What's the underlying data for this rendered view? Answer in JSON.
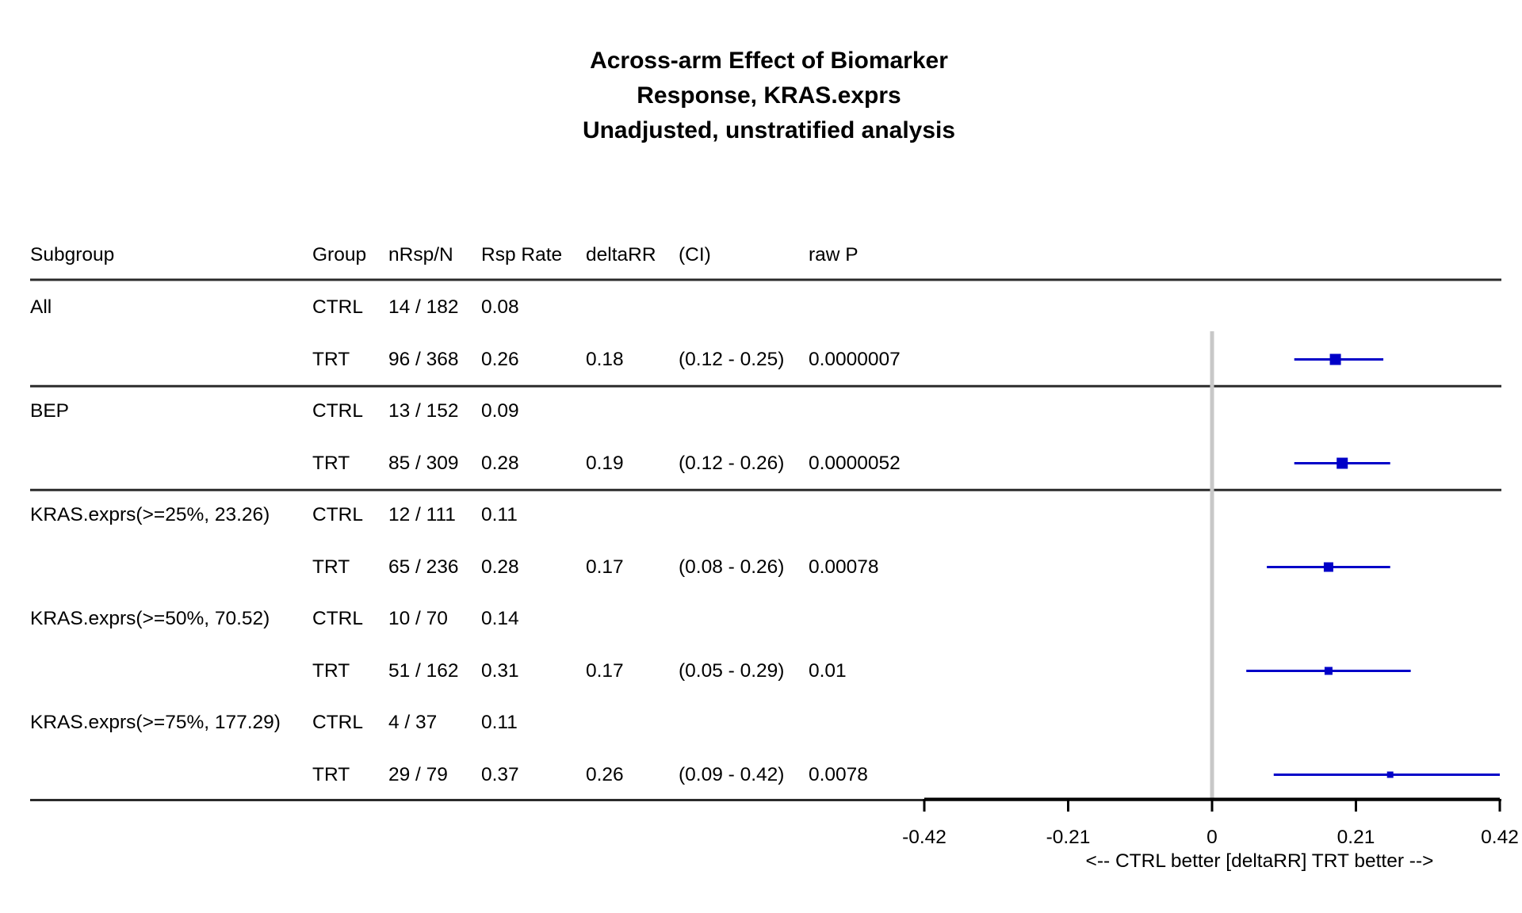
{
  "chart_data": {
    "type": "forest",
    "title": [
      "Across-arm Effect of Biomarker",
      "Response, KRAS.exprs",
      "Unadjusted, unstratified analysis"
    ],
    "columns": [
      "Subgroup",
      "Group",
      "nRsp/N",
      "Rsp Rate",
      "deltaRR",
      "(CI)",
      "raw P"
    ],
    "subgroups": [
      {
        "label": "All",
        "rows": [
          {
            "group": "CTRL",
            "nrsp_n": "14 / 182",
            "rate": "0.08"
          },
          {
            "group": "TRT",
            "nrsp_n": "96 / 368",
            "rate": "0.26",
            "delta": "0.18",
            "ci": "(0.12 - 0.25)",
            "p": "0.0000007"
          }
        ],
        "estimate": 0.18,
        "lower": 0.12,
        "upper": 0.25,
        "marker": "large"
      },
      {
        "label": "BEP",
        "rows": [
          {
            "group": "CTRL",
            "nrsp_n": "13 / 152",
            "rate": "0.09"
          },
          {
            "group": "TRT",
            "nrsp_n": "85 / 309",
            "rate": "0.28",
            "delta": "0.19",
            "ci": "(0.12 - 0.26)",
            "p": "0.0000052"
          }
        ],
        "estimate": 0.19,
        "lower": 0.12,
        "upper": 0.26,
        "marker": "large"
      },
      {
        "label": "KRAS.exprs(>=25%, 23.26)",
        "rows": [
          {
            "group": "CTRL",
            "nrsp_n": "12 / 111",
            "rate": "0.11"
          },
          {
            "group": "TRT",
            "nrsp_n": "65 / 236",
            "rate": "0.28",
            "delta": "0.17",
            "ci": "(0.08 - 0.26)",
            "p": "0.00078"
          }
        ],
        "estimate": 0.17,
        "lower": 0.08,
        "upper": 0.26,
        "marker": "medium"
      },
      {
        "label": "KRAS.exprs(>=50%, 70.52)",
        "rows": [
          {
            "group": "CTRL",
            "nrsp_n": "10 / 70",
            "rate": "0.14"
          },
          {
            "group": "TRT",
            "nrsp_n": "51 / 162",
            "rate": "0.31",
            "delta": "0.17",
            "ci": "(0.05 - 0.29)",
            "p": "0.01"
          }
        ],
        "estimate": 0.17,
        "lower": 0.05,
        "upper": 0.29,
        "marker": "small"
      },
      {
        "label": "KRAS.exprs(>=75%, 177.29)",
        "rows": [
          {
            "group": "CTRL",
            "nrsp_n": "4 / 37",
            "rate": "0.11"
          },
          {
            "group": "TRT",
            "nrsp_n": "29 / 79",
            "rate": "0.37",
            "delta": "0.26",
            "ci": "(0.09 - 0.42)",
            "p": "0.0078"
          }
        ],
        "estimate": 0.26,
        "lower": 0.09,
        "upper": 0.42,
        "marker": "tiny"
      }
    ],
    "x_ticks": [
      -0.42,
      -0.21,
      0,
      0.21,
      0.42
    ],
    "x_tick_labels": [
      "-0.42",
      "-0.21",
      "0",
      "0.21",
      "0.42"
    ],
    "xlim": [
      -0.42,
      0.42
    ],
    "reference_line": 0,
    "xlabel": "<--  CTRL better [deltaRR]  TRT better -->",
    "colors": {
      "marker": "#0000C8",
      "reference": "#C8C8C8",
      "rule": "#2b2b2b"
    }
  }
}
